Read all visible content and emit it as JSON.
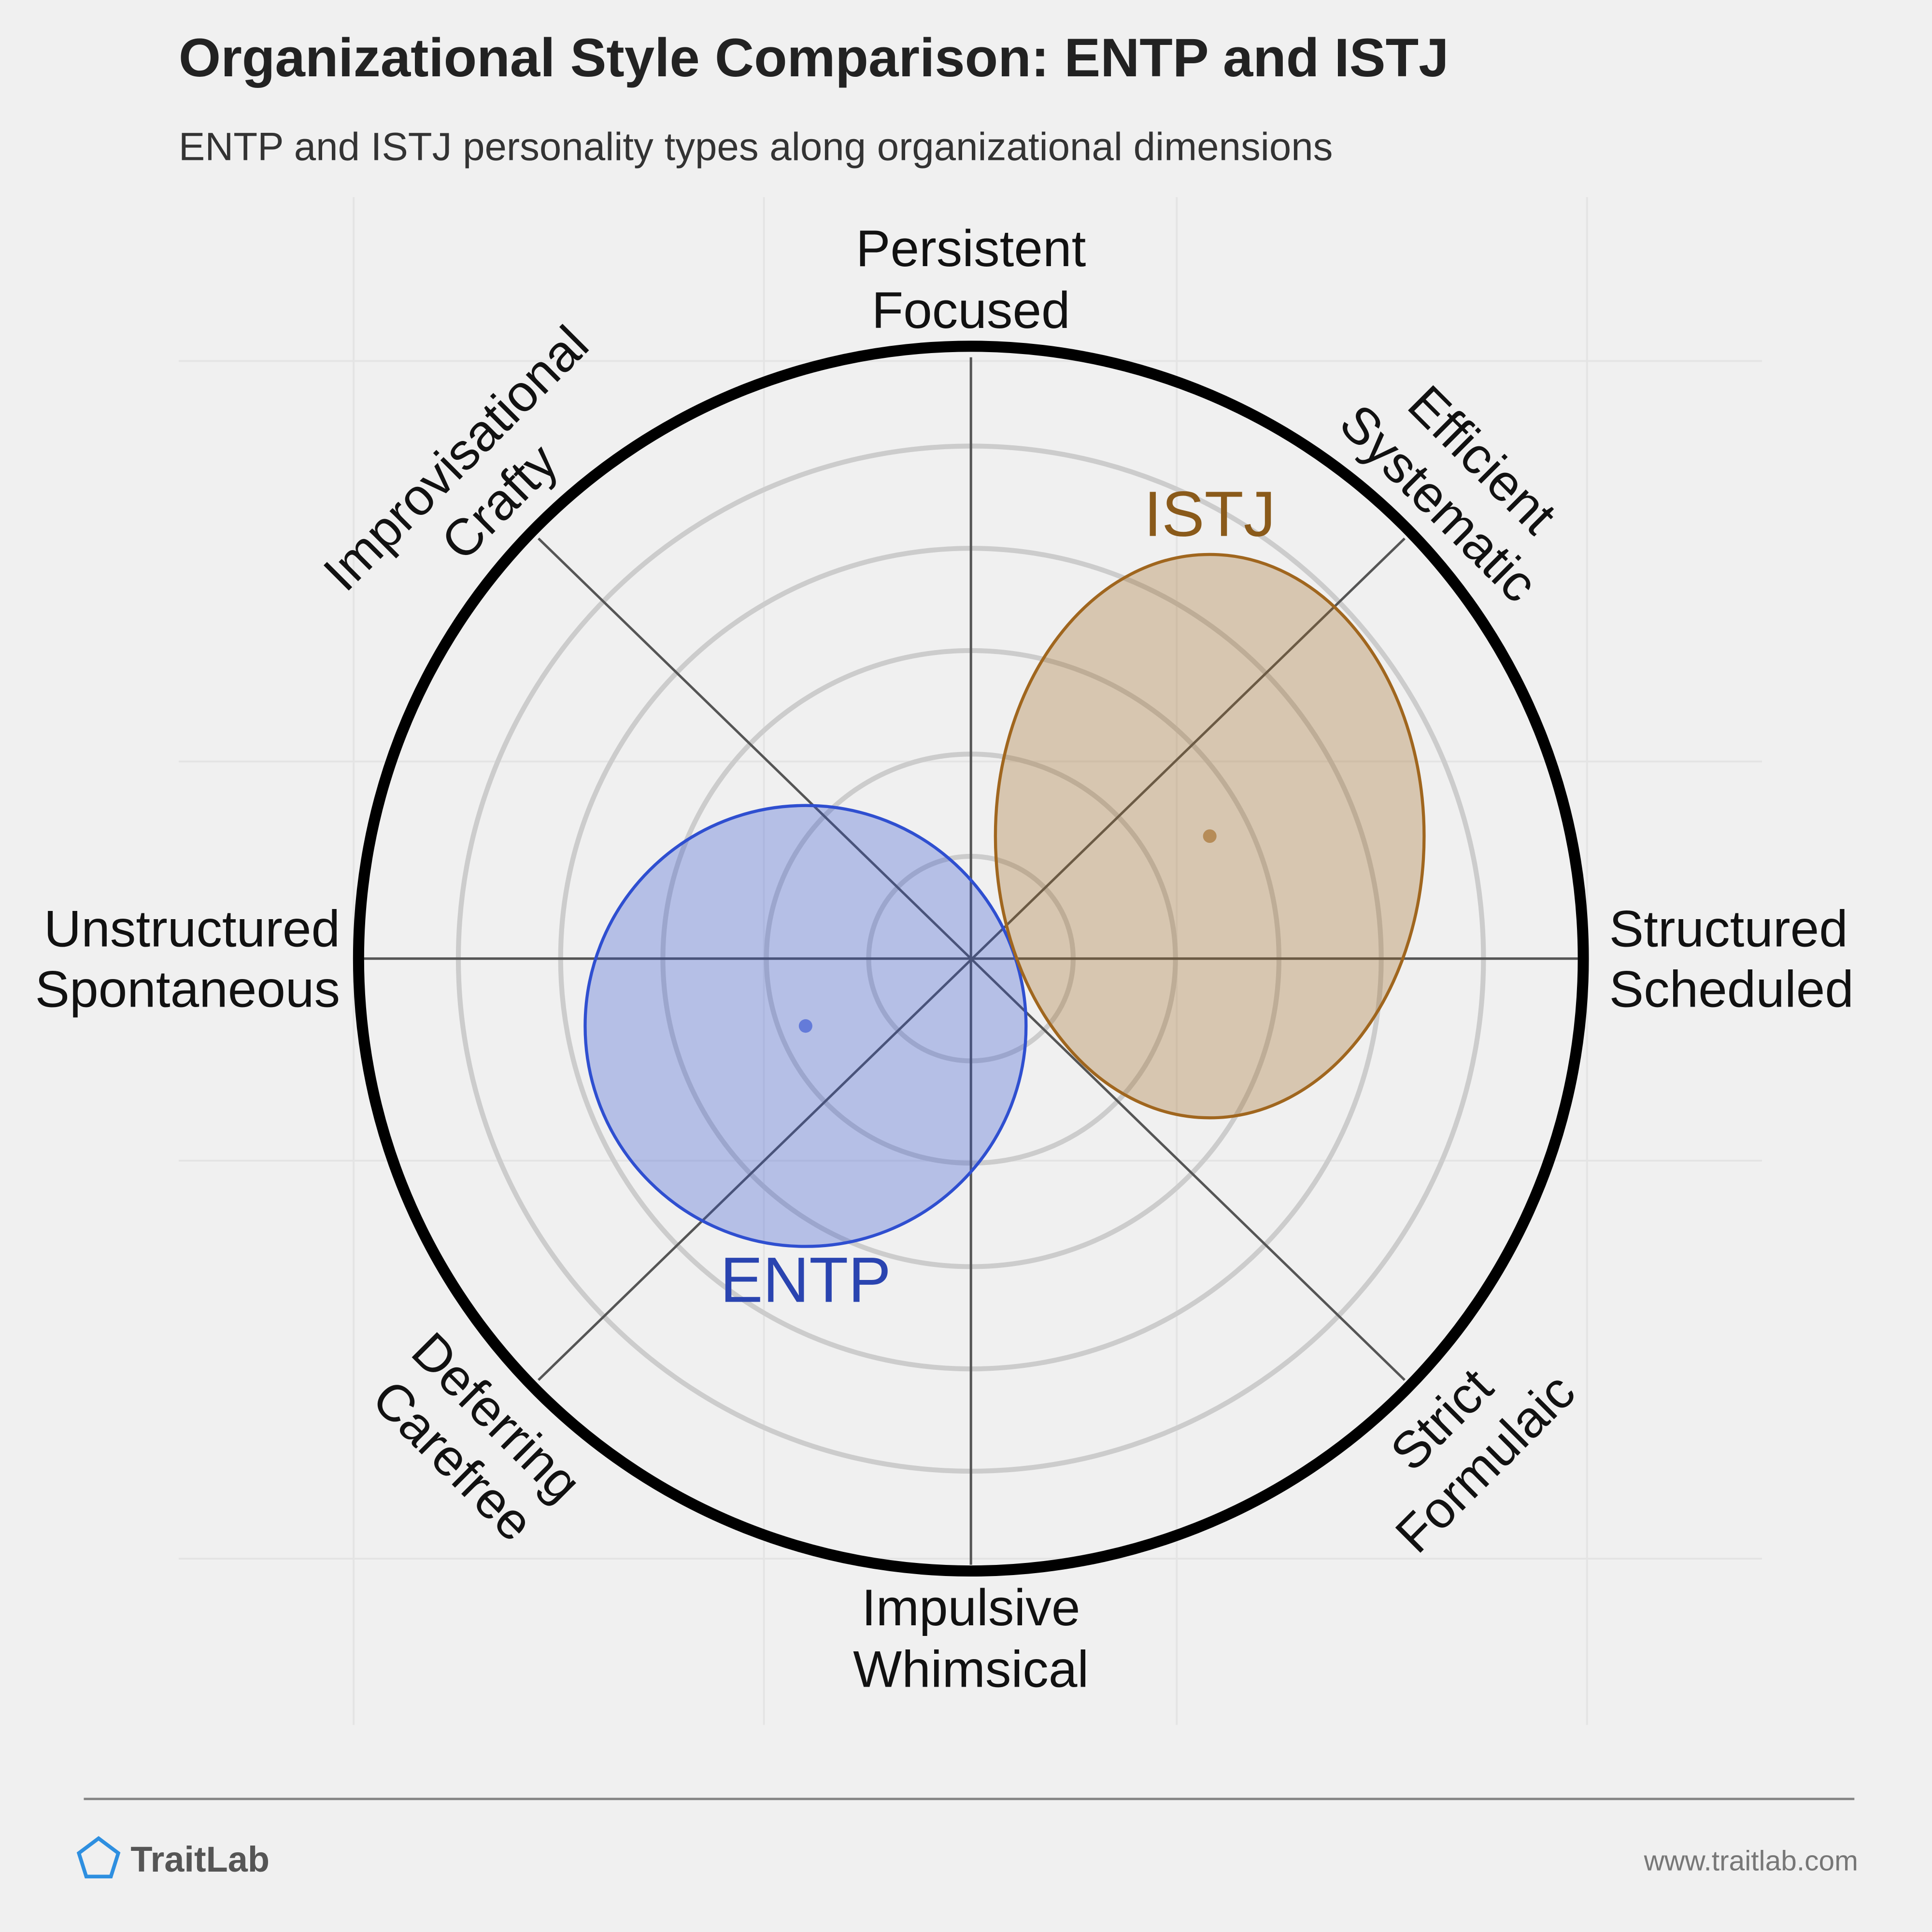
{
  "chart_data": {
    "type": "ellipse-scatter",
    "title": "Organizational Style Comparison: ENTP and ISTJ",
    "subtitle": "ENTP and ISTJ personality types along organizational dimensions",
    "xlim": [
      -100,
      100
    ],
    "ylim": [
      -100,
      100
    ],
    "axis_labels": [
      [
        "Persistent",
        "Focused"
      ],
      [
        "Efficient",
        "Systematic"
      ],
      [
        "Structured",
        "Scheduled"
      ],
      [
        "Strict",
        "Formulaic"
      ],
      [
        "Impulsive",
        "Whimsical"
      ],
      [
        "Deferring",
        "Carefree"
      ],
      [
        "Unstructured",
        "Spontaneous"
      ],
      [
        "Improvisational",
        "Crafty"
      ]
    ],
    "series": [
      {
        "name": "ENTP",
        "color": "#2f4fd0",
        "label_color": "#2a44b0",
        "label_position": "below",
        "x": -27,
        "y": -11,
        "rx": 36,
        "ry": 36
      },
      {
        "name": "ISTJ",
        "color": "#a0661e",
        "label_color": "#8a5a1a",
        "label_position": "above",
        "x": 39,
        "y": 20,
        "rx": 35,
        "ry": 46
      }
    ]
  },
  "footer": {
    "brand": "TraitLab",
    "url": "www.traitlab.com"
  }
}
